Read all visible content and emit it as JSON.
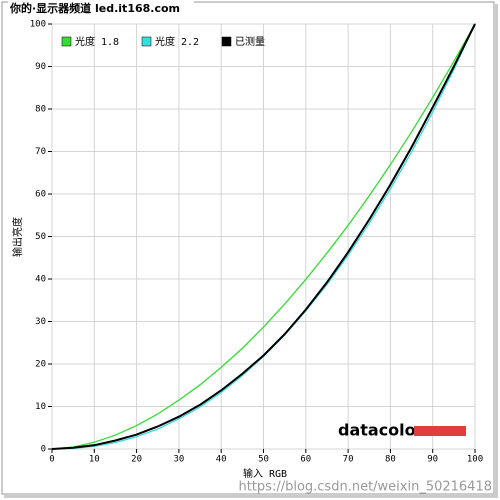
{
  "chart_data": {
    "type": "line",
    "watermark_top": "你的·显示器频道 led.it168.com",
    "logo": "datacolor",
    "watermark_bottom": "https://blog.csdn.net/weixin_50216418",
    "xlabel": "输入 RGB",
    "ylabel": "输出亮度",
    "x": [
      0,
      5,
      10,
      15,
      20,
      25,
      30,
      35,
      40,
      45,
      50,
      55,
      60,
      65,
      70,
      75,
      80,
      85,
      90,
      95,
      100
    ],
    "series": [
      {
        "name": "光度 1.8",
        "color": "#33dd33",
        "values": [
          0,
          0.46,
          1.58,
          3.28,
          5.52,
          8.25,
          11.5,
          15.1,
          19.2,
          23.7,
          28.7,
          34.1,
          39.9,
          46.1,
          52.6,
          59.6,
          66.9,
          74.6,
          82.7,
          91.2,
          100
        ]
      },
      {
        "name": "光度 2.2",
        "color": "#33dddd",
        "values": [
          0,
          0.14,
          0.63,
          1.54,
          2.9,
          4.7,
          7.1,
          9.9,
          13.3,
          17.3,
          21.8,
          26.8,
          32.5,
          38.7,
          45.6,
          53.1,
          61.2,
          69.9,
          79.3,
          89.3,
          100
        ]
      },
      {
        "name": "已测量",
        "color": "#000000",
        "values": [
          0,
          0.3,
          0.9,
          2.0,
          3.4,
          5.3,
          7.6,
          10.4,
          13.8,
          17.7,
          22.0,
          27.0,
          32.8,
          39.2,
          46.3,
          54.0,
          62.2,
          71.0,
          80.4,
          90.0,
          100
        ]
      }
    ],
    "xlim": [
      0,
      100
    ],
    "ylim": [
      0,
      100
    ],
    "xticks": [
      0,
      10,
      20,
      30,
      40,
      50,
      60,
      70,
      80,
      90,
      100
    ],
    "yticks": [
      0,
      10,
      20,
      30,
      40,
      50,
      60,
      70,
      80,
      90,
      100
    ],
    "grid": true
  }
}
